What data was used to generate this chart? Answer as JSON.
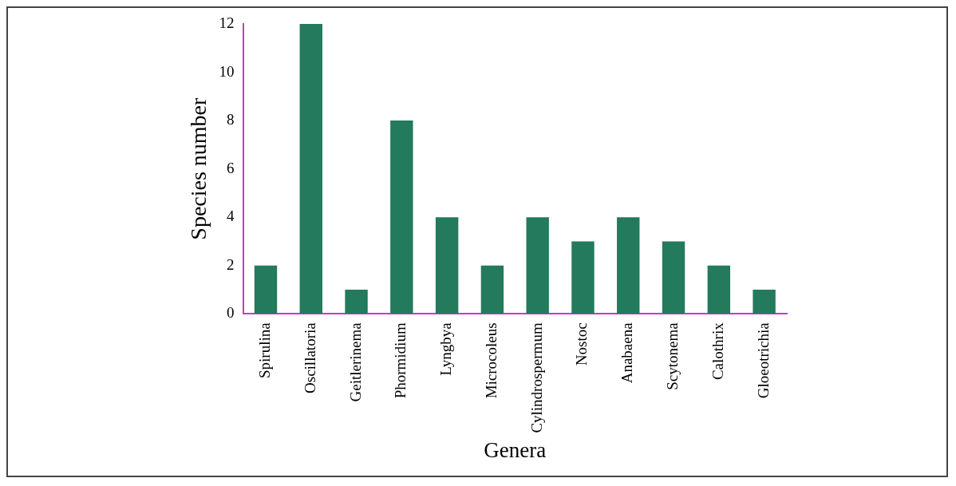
{
  "chart_data": {
    "type": "bar",
    "xlabel": "Genera",
    "ylabel": "Species number",
    "categories": [
      "Spirulina",
      "Oscillatoria",
      "Geitlerinema",
      "Phormidium",
      "Lyngbya",
      "Microcoleus",
      "Cylindrospermum",
      "Nostoc",
      "Anabaena",
      "Scytonema",
      "Calothrix",
      "Gloeotrichia"
    ],
    "values": [
      2,
      12,
      1,
      8,
      4,
      2,
      4,
      3,
      4,
      3,
      2,
      1
    ],
    "color": "#237a5c",
    "ylim": [
      0,
      12
    ],
    "yticks": [
      0,
      2,
      4,
      6,
      8,
      10,
      12
    ]
  }
}
